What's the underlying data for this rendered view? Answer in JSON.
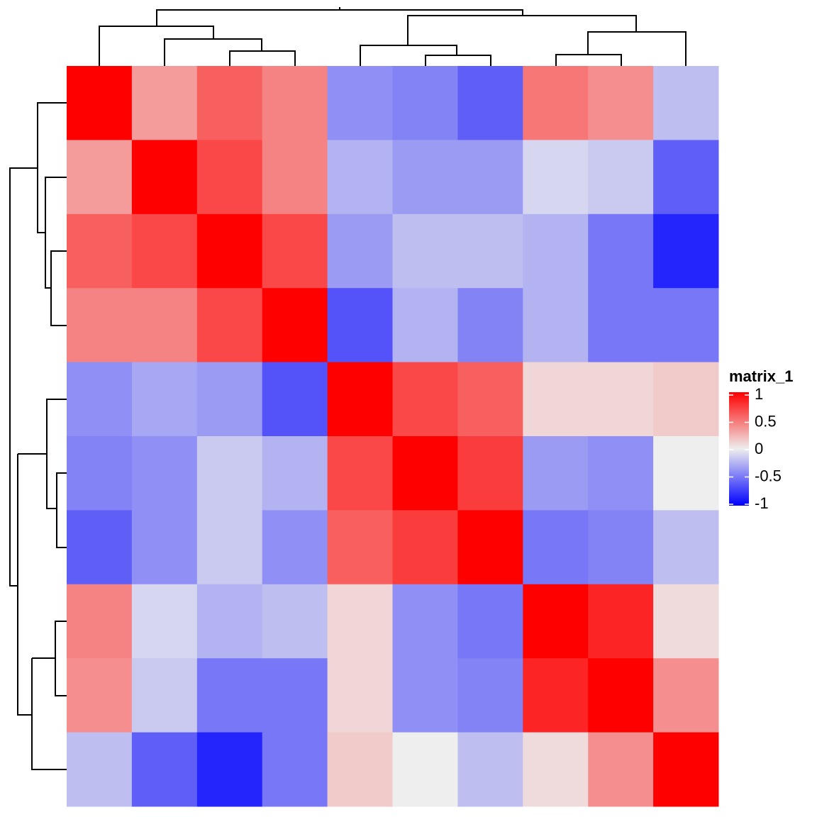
{
  "chart_data": {
    "type": "heatmap",
    "values": [
      [
        1,
        0.35,
        0.6,
        0.45,
        -0.4,
        -0.45,
        -0.6,
        0.5,
        0.4,
        -0.2
      ],
      [
        0.35,
        1,
        0.7,
        0.45,
        -0.25,
        -0.35,
        -0.35,
        -0.1,
        -0.15,
        -0.6
      ],
      [
        0.6,
        0.7,
        1,
        0.7,
        -0.35,
        -0.2,
        -0.2,
        -0.25,
        -0.5,
        -0.85
      ],
      [
        0.45,
        0.45,
        0.7,
        1,
        -0.65,
        -0.25,
        -0.45,
        -0.25,
        -0.5,
        -0.5
      ],
      [
        -0.4,
        -0.3,
        -0.35,
        -0.65,
        1,
        0.7,
        0.6,
        0.1,
        0.1,
        0.15
      ],
      [
        -0.45,
        -0.4,
        -0.15,
        -0.25,
        0.7,
        1,
        0.75,
        -0.35,
        -0.4,
        0.0
      ],
      [
        -0.6,
        -0.4,
        -0.15,
        -0.4,
        0.6,
        0.75,
        1,
        -0.5,
        -0.45,
        -0.2
      ],
      [
        0.45,
        -0.1,
        -0.25,
        -0.2,
        0.1,
        -0.4,
        -0.5,
        1,
        0.85,
        0.08
      ],
      [
        0.4,
        -0.15,
        -0.5,
        -0.5,
        0.1,
        -0.4,
        -0.45,
        0.85,
        1,
        0.4
      ],
      [
        -0.2,
        -0.6,
        -0.85,
        -0.5,
        0.15,
        0.0,
        -0.2,
        0.08,
        0.4,
        1
      ]
    ],
    "legend_title": "matrix_1",
    "colors": [
      "#0000FF",
      "#EEEEEE",
      "#FF0000"
    ],
    "clim": [
      -1,
      1
    ],
    "cticks": [
      -1,
      -0.5,
      0,
      0.5,
      1
    ]
  }
}
